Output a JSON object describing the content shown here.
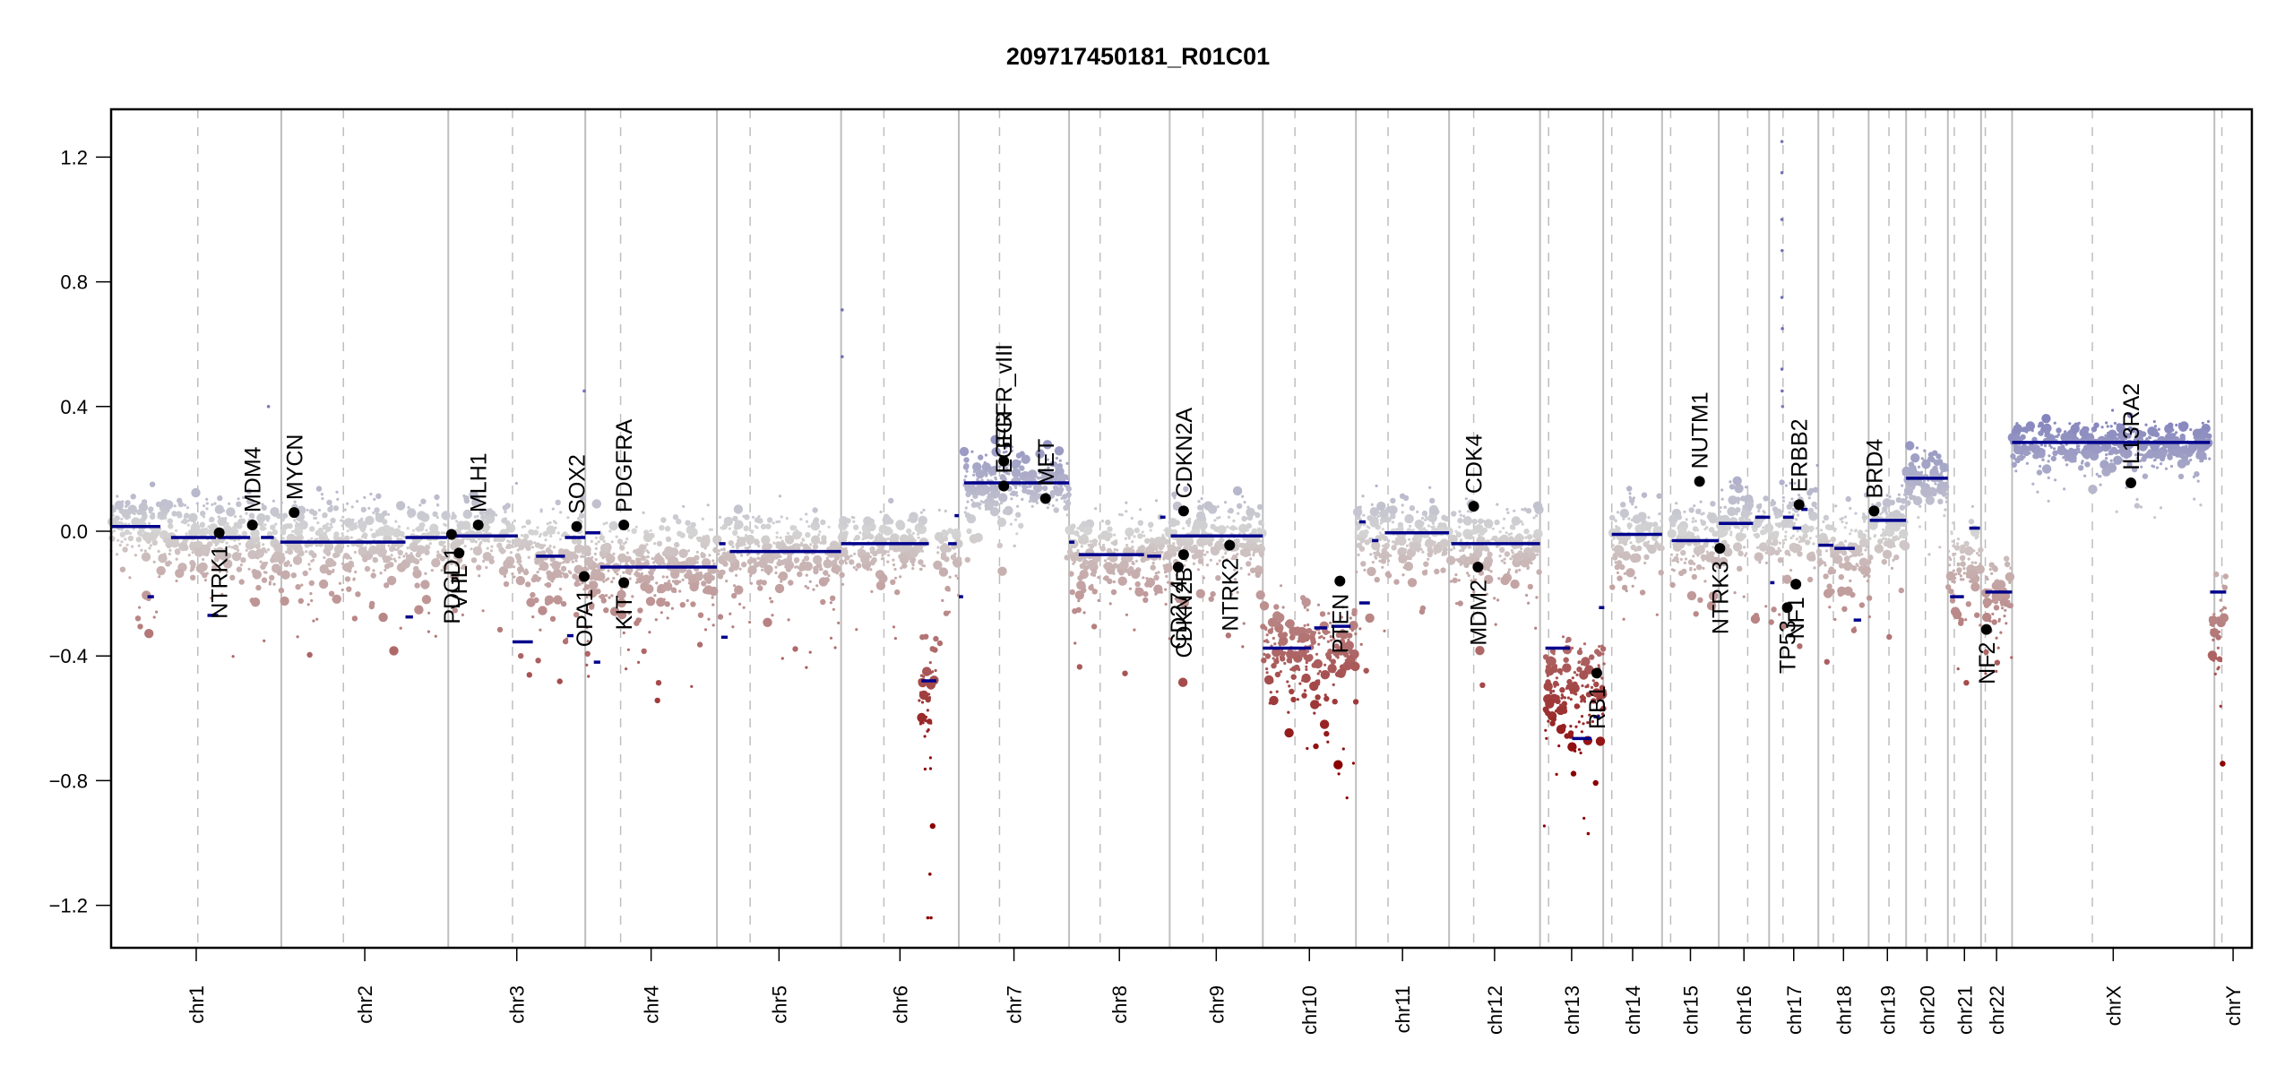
{
  "chart_data": {
    "type": "scatter",
    "title": "209717450181_R01C01",
    "xlabel": "",
    "ylabel": "",
    "ylim": [
      -1.35,
      1.35
    ],
    "yticks": [
      1.2,
      0.8,
      0.4,
      0.0,
      -0.4,
      -0.8,
      -1.2
    ],
    "ytick_labels": [
      "1.2",
      "0.8",
      "0.4",
      "0.0",
      "−0.4",
      "−0.8",
      "−1.2"
    ],
    "grid": false,
    "colors": {
      "gain": "#7070b8",
      "neutral": "#d4d4d4",
      "loss": "#8b0000",
      "segment": "#00008b",
      "gene_point": "#000000",
      "chrom_boundary": "#bebebe",
      "centromere": "#bebebe"
    },
    "chromosomes": [
      {
        "name": "chr1",
        "start": 0.0,
        "end": 0.0795,
        "centromere": 0.0405
      },
      {
        "name": "chr2",
        "start": 0.0795,
        "end": 0.1575,
        "centromere": 0.1085
      },
      {
        "name": "chr3",
        "start": 0.1575,
        "end": 0.2215,
        "centromere": 0.1875
      },
      {
        "name": "chr4",
        "start": 0.2215,
        "end": 0.283,
        "centromere": 0.238
      },
      {
        "name": "chr5",
        "start": 0.283,
        "end": 0.341,
        "centromere": 0.2985
      },
      {
        "name": "chr6",
        "start": 0.341,
        "end": 0.396,
        "centromere": 0.361
      },
      {
        "name": "chr7",
        "start": 0.396,
        "end": 0.4475,
        "centromere": 0.415
      },
      {
        "name": "chr8",
        "start": 0.4475,
        "end": 0.4945,
        "centromere": 0.462
      },
      {
        "name": "chr9",
        "start": 0.4945,
        "end": 0.538,
        "centromere": 0.51
      },
      {
        "name": "chr10",
        "start": 0.538,
        "end": 0.5815,
        "centromere": 0.553
      },
      {
        "name": "chr11",
        "start": 0.5815,
        "end": 0.625,
        "centromere": 0.5965
      },
      {
        "name": "chr12",
        "start": 0.625,
        "end": 0.6675,
        "centromere": 0.6365
      },
      {
        "name": "chr13",
        "start": 0.6675,
        "end": 0.697,
        "centromere": 0.6715
      },
      {
        "name": "chr14",
        "start": 0.697,
        "end": 0.7245,
        "centromere": 0.701
      },
      {
        "name": "chr15",
        "start": 0.7245,
        "end": 0.751,
        "centromere": 0.7285
      },
      {
        "name": "chr16",
        "start": 0.751,
        "end": 0.7745,
        "centromere": 0.7645
      },
      {
        "name": "chr17",
        "start": 0.7745,
        "end": 0.7975,
        "centromere": 0.781
      },
      {
        "name": "chr18",
        "start": 0.7975,
        "end": 0.821,
        "centromere": 0.8045
      },
      {
        "name": "chr19",
        "start": 0.821,
        "end": 0.8385,
        "centromere": 0.8305
      },
      {
        "name": "chr20",
        "start": 0.8385,
        "end": 0.858,
        "centromere": 0.8475
      },
      {
        "name": "chr21",
        "start": 0.858,
        "end": 0.8735,
        "centromere": 0.861
      },
      {
        "name": "chr22",
        "start": 0.8735,
        "end": 0.888,
        "centromere": 0.8755
      },
      {
        "name": "chrX",
        "start": 0.888,
        "end": 0.9825,
        "centromere": 0.9255
      },
      {
        "name": "chrY",
        "start": 0.9825,
        "end": 1.0,
        "centromere": 0.986
      }
    ],
    "segments": [
      {
        "chr": "chr1",
        "x0": 0.0,
        "x1": 0.023,
        "y": 0.015
      },
      {
        "chr": "chr1",
        "x0": 0.028,
        "x1": 0.049,
        "y": -0.02
      },
      {
        "chr": "chr1",
        "x0": 0.05,
        "x1": 0.065,
        "y": -0.02
      },
      {
        "chr": "chr1",
        "x0": 0.017,
        "x1": 0.02,
        "y": -0.21
      },
      {
        "chr": "chr1",
        "x0": 0.045,
        "x1": 0.05,
        "y": -0.27
      },
      {
        "chr": "chr2",
        "x0": 0.07,
        "x1": 0.076,
        "y": -0.02
      },
      {
        "chr": "chr2",
        "x0": 0.079,
        "x1": 0.1375,
        "y": -0.035
      },
      {
        "chr": "chr2",
        "x0": 0.1375,
        "x1": 0.157,
        "y": -0.02
      },
      {
        "chr": "chr2",
        "x0": 0.1375,
        "x1": 0.141,
        "y": -0.275
      },
      {
        "chr": "chr3",
        "x0": 0.159,
        "x1": 0.19,
        "y": -0.015
      },
      {
        "chr": "chr3",
        "x0": 0.1875,
        "x1": 0.197,
        "y": -0.355
      },
      {
        "chr": "chr3",
        "x0": 0.1985,
        "x1": 0.212,
        "y": -0.08
      },
      {
        "chr": "chr3",
        "x0": 0.212,
        "x1": 0.2215,
        "y": -0.02
      },
      {
        "chr": "chr3",
        "x0": 0.213,
        "x1": 0.216,
        "y": -0.335
      },
      {
        "chr": "chr4",
        "x0": 0.2215,
        "x1": 0.2285,
        "y": -0.005
      },
      {
        "chr": "chr4",
        "x0": 0.2285,
        "x1": 0.283,
        "y": -0.115
      },
      {
        "chr": "chr4",
        "x0": 0.2255,
        "x1": 0.2285,
        "y": -0.42
      },
      {
        "chr": "chr5",
        "x0": 0.284,
        "x1": 0.287,
        "y": -0.04
      },
      {
        "chr": "chr5",
        "x0": 0.289,
        "x1": 0.341,
        "y": -0.065
      },
      {
        "chr": "chr5",
        "x0": 0.285,
        "x1": 0.288,
        "y": -0.34
      },
      {
        "chr": "chr6",
        "x0": 0.341,
        "x1": 0.382,
        "y": -0.04
      },
      {
        "chr": "chr6",
        "x0": 0.3785,
        "x1": 0.3855,
        "y": -0.48
      },
      {
        "chr": "chr6",
        "x0": 0.391,
        "x1": 0.395,
        "y": -0.04
      },
      {
        "chr": "chr6",
        "x0": 0.394,
        "x1": 0.396,
        "y": 0.05
      },
      {
        "chr": "chr7",
        "x0": 0.3985,
        "x1": 0.4475,
        "y": 0.155
      },
      {
        "chr": "chr7",
        "x0": 0.396,
        "x1": 0.398,
        "y": -0.21
      },
      {
        "chr": "chr8",
        "x0": 0.4475,
        "x1": 0.45,
        "y": -0.035
      },
      {
        "chr": "chr8",
        "x0": 0.452,
        "x1": 0.4825,
        "y": -0.075
      },
      {
        "chr": "chr8",
        "x0": 0.484,
        "x1": 0.4905,
        "y": -0.08
      },
      {
        "chr": "chr8",
        "x0": 0.49,
        "x1": 0.4925,
        "y": 0.045
      },
      {
        "chr": "chr9",
        "x0": 0.495,
        "x1": 0.538,
        "y": -0.015
      },
      {
        "chr": "chr10",
        "x0": 0.538,
        "x1": 0.5605,
        "y": -0.375
      },
      {
        "chr": "chr10",
        "x0": 0.562,
        "x1": 0.568,
        "y": -0.31
      },
      {
        "chr": "chr10",
        "x0": 0.57,
        "x1": 0.579,
        "y": -0.305
      },
      {
        "chr": "chr11",
        "x0": 0.583,
        "x1": 0.588,
        "y": -0.23
      },
      {
        "chr": "chr11",
        "x0": 0.583,
        "x1": 0.586,
        "y": 0.03
      },
      {
        "chr": "chr11",
        "x0": 0.589,
        "x1": 0.592,
        "y": -0.03
      },
      {
        "chr": "chr11",
        "x0": 0.595,
        "x1": 0.625,
        "y": -0.005
      },
      {
        "chr": "chr12",
        "x0": 0.626,
        "x1": 0.6675,
        "y": -0.04
      },
      {
        "chr": "chr13",
        "x0": 0.67,
        "x1": 0.6815,
        "y": -0.375
      },
      {
        "chr": "chr13",
        "x0": 0.6825,
        "x1": 0.6915,
        "y": -0.665
      },
      {
        "chr": "chr13",
        "x0": 0.6925,
        "x1": 0.6955,
        "y": -0.595
      },
      {
        "chr": "chr13",
        "x0": 0.695,
        "x1": 0.6975,
        "y": -0.245
      },
      {
        "chr": "chr14",
        "x0": 0.701,
        "x1": 0.7245,
        "y": -0.01
      },
      {
        "chr": "chr15",
        "x0": 0.729,
        "x1": 0.751,
        "y": -0.03
      },
      {
        "chr": "chr16",
        "x0": 0.751,
        "x1": 0.767,
        "y": 0.025
      },
      {
        "chr": "chr16",
        "x0": 0.768,
        "x1": 0.775,
        "y": 0.045
      },
      {
        "chr": "chr17",
        "x0": 0.781,
        "x1": 0.786,
        "y": 0.045
      },
      {
        "chr": "chr17",
        "x0": 0.7855,
        "x1": 0.7895,
        "y": 0.01
      },
      {
        "chr": "chr17",
        "x0": 0.7895,
        "x1": 0.7925,
        "y": 0.07
      },
      {
        "chr": "chr17",
        "x0": 0.775,
        "x1": 0.777,
        "y": -0.165
      },
      {
        "chr": "chr18",
        "x0": 0.7975,
        "x1": 0.8045,
        "y": -0.045
      },
      {
        "chr": "chr18",
        "x0": 0.805,
        "x1": 0.8145,
        "y": -0.055
      },
      {
        "chr": "chr18",
        "x0": 0.814,
        "x1": 0.8175,
        "y": -0.285
      },
      {
        "chr": "chr19",
        "x0": 0.8215,
        "x1": 0.8385,
        "y": 0.035
      },
      {
        "chr": "chr20",
        "x0": 0.8385,
        "x1": 0.858,
        "y": 0.17
      },
      {
        "chr": "chr21",
        "x0": 0.859,
        "x1": 0.8655,
        "y": -0.21
      },
      {
        "chr": "chr21",
        "x0": 0.868,
        "x1": 0.873,
        "y": 0.01
      },
      {
        "chr": "chr22",
        "x0": 0.8755,
        "x1": 0.888,
        "y": -0.195
      },
      {
        "chr": "chrX",
        "x0": 0.888,
        "x1": 0.9805,
        "y": 0.285
      },
      {
        "chr": "chrY",
        "x0": 0.9805,
        "x1": 0.988,
        "y": -0.195
      }
    ],
    "genes": [
      {
        "name": "NTRK1",
        "x": 0.0505,
        "y": -0.005,
        "label_side": "below"
      },
      {
        "name": "MDM4",
        "x": 0.066,
        "y": 0.02,
        "label_side": "above"
      },
      {
        "name": "MYCN",
        "x": 0.0855,
        "y": 0.06,
        "label_side": "above"
      },
      {
        "name": "PDGD1",
        "x": 0.159,
        "y": -0.01,
        "label_side": "below"
      },
      {
        "name": "VHL",
        "x": 0.1625,
        "y": -0.07,
        "label_side": "below"
      },
      {
        "name": "MLH1",
        "x": 0.1715,
        "y": 0.02,
        "label_side": "above"
      },
      {
        "name": "SOX2",
        "x": 0.2175,
        "y": 0.015,
        "label_side": "above"
      },
      {
        "name": "OPA1",
        "x": 0.221,
        "y": -0.145,
        "label_side": "below"
      },
      {
        "name": "PDGFRA",
        "x": 0.2395,
        "y": 0.02,
        "label_side": "above"
      },
      {
        "name": "KIT",
        "x": 0.2395,
        "y": -0.165,
        "label_side": "below"
      },
      {
        "name": "EGFR",
        "x": 0.417,
        "y": 0.145,
        "label_side": "above"
      },
      {
        "name": "EGFR_vIII",
        "x": 0.417,
        "y": 0.225,
        "label_side": "above"
      },
      {
        "name": "MET",
        "x": 0.4365,
        "y": 0.105,
        "label_side": "above"
      },
      {
        "name": "CD274",
        "x": 0.4985,
        "y": -0.115,
        "label_side": "below"
      },
      {
        "name": "CDKN2B",
        "x": 0.501,
        "y": -0.075,
        "label_side": "below"
      },
      {
        "name": "CDKN2A",
        "x": 0.501,
        "y": 0.065,
        "label_side": "above"
      },
      {
        "name": "NTRK2",
        "x": 0.5225,
        "y": -0.045,
        "label_side": "below"
      },
      {
        "name": "PTEN",
        "x": 0.574,
        "y": -0.16,
        "label_side": "below"
      },
      {
        "name": "CDK4",
        "x": 0.6365,
        "y": 0.08,
        "label_side": "above"
      },
      {
        "name": "MDM2",
        "x": 0.6385,
        "y": -0.115,
        "label_side": "below"
      },
      {
        "name": "RB1",
        "x": 0.694,
        "y": -0.455,
        "label_side": "below"
      },
      {
        "name": "NUTM1",
        "x": 0.742,
        "y": 0.16,
        "label_side": "above"
      },
      {
        "name": "NTRK3",
        "x": 0.7515,
        "y": -0.055,
        "label_side": "below"
      },
      {
        "name": "TP53",
        "x": 0.783,
        "y": -0.245,
        "label_side": "below"
      },
      {
        "name": "NF1",
        "x": 0.787,
        "y": -0.17,
        "label_side": "below"
      },
      {
        "name": "ERBB2",
        "x": 0.7885,
        "y": 0.085,
        "label_side": "above"
      },
      {
        "name": "BRD4",
        "x": 0.8235,
        "y": 0.065,
        "label_side": "above"
      },
      {
        "name": "NF2",
        "x": 0.876,
        "y": -0.315,
        "label_side": "below"
      },
      {
        "name": "IL13RA2",
        "x": 0.9435,
        "y": 0.155,
        "label_side": "above"
      }
    ],
    "probe_profiles": [
      {
        "chr": "chr1",
        "x0": 0.0,
        "x1": 0.024,
        "center": 0.015,
        "spread": 0.13
      },
      {
        "chr": "chr1",
        "x0": 0.024,
        "x1": 0.065,
        "center": -0.02,
        "spread": 0.16
      },
      {
        "chr": "chr2",
        "x0": 0.065,
        "x1": 0.1575,
        "center": -0.03,
        "spread": 0.17
      },
      {
        "chr": "chr3",
        "x0": 0.1575,
        "x1": 0.19,
        "center": -0.015,
        "spread": 0.15
      },
      {
        "chr": "chr3",
        "x0": 0.19,
        "x1": 0.2215,
        "center": -0.07,
        "spread": 0.18
      },
      {
        "chr": "chr4",
        "x0": 0.2215,
        "x1": 0.283,
        "center": -0.1,
        "spread": 0.18
      },
      {
        "chr": "chr5",
        "x0": 0.283,
        "x1": 0.341,
        "center": -0.06,
        "spread": 0.16
      },
      {
        "chr": "chr6",
        "x0": 0.341,
        "x1": 0.38,
        "center": -0.04,
        "spread": 0.15
      },
      {
        "chr": "chr6",
        "x0": 0.3775,
        "x1": 0.3855,
        "center": -0.5,
        "spread": 0.25
      },
      {
        "chr": "chr6",
        "x0": 0.386,
        "x1": 0.396,
        "center": -0.05,
        "spread": 0.15
      },
      {
        "chr": "chr7",
        "x0": 0.3985,
        "x1": 0.4475,
        "center": 0.16,
        "spread": 0.13
      },
      {
        "chr": "chr8",
        "x0": 0.4475,
        "x1": 0.4945,
        "center": -0.07,
        "spread": 0.17
      },
      {
        "chr": "chr9",
        "x0": 0.4945,
        "x1": 0.538,
        "center": -0.02,
        "spread": 0.17
      },
      {
        "chr": "chr10",
        "x0": 0.538,
        "x1": 0.5815,
        "center": -0.37,
        "spread": 0.2
      },
      {
        "chr": "chr11",
        "x0": 0.5815,
        "x1": 0.625,
        "center": -0.01,
        "spread": 0.15
      },
      {
        "chr": "chr12",
        "x0": 0.625,
        "x1": 0.6675,
        "center": -0.04,
        "spread": 0.15
      },
      {
        "chr": "chr13",
        "x0": 0.6695,
        "x1": 0.6975,
        "center": -0.5,
        "spread": 0.22
      },
      {
        "chr": "chr14",
        "x0": 0.701,
        "x1": 0.7245,
        "center": -0.01,
        "spread": 0.15
      },
      {
        "chr": "chr15",
        "x0": 0.7285,
        "x1": 0.751,
        "center": -0.03,
        "spread": 0.16
      },
      {
        "chr": "chr16",
        "x0": 0.751,
        "x1": 0.7745,
        "center": 0.03,
        "spread": 0.15
      },
      {
        "chr": "chr17",
        "x0": 0.7745,
        "x1": 0.7975,
        "center": 0.02,
        "spread": 0.17
      },
      {
        "chr": "chr18",
        "x0": 0.7975,
        "x1": 0.821,
        "center": -0.05,
        "spread": 0.17
      },
      {
        "chr": "chr19",
        "x0": 0.821,
        "x1": 0.8385,
        "center": 0.03,
        "spread": 0.15
      },
      {
        "chr": "chr20",
        "x0": 0.8385,
        "x1": 0.858,
        "center": 0.17,
        "spread": 0.1
      },
      {
        "chr": "chr21",
        "x0": 0.858,
        "x1": 0.8735,
        "center": -0.1,
        "spread": 0.18
      },
      {
        "chr": "chr22",
        "x0": 0.8755,
        "x1": 0.888,
        "center": -0.2,
        "spread": 0.14
      },
      {
        "chr": "chrX",
        "x0": 0.888,
        "x1": 0.9805,
        "center": 0.28,
        "spread": 0.1
      },
      {
        "chr": "chrY",
        "x0": 0.9805,
        "x1": 0.988,
        "center": -0.3,
        "spread": 0.25
      }
    ],
    "outliers": [
      {
        "chr": "chr17",
        "x": 0.7805,
        "y": 1.25
      },
      {
        "chr": "chr17",
        "x": 0.7805,
        "y": 1.15
      },
      {
        "chr": "chr17",
        "x": 0.7805,
        "y": 1.0
      },
      {
        "chr": "chr17",
        "x": 0.7806,
        "y": 0.9
      },
      {
        "chr": "chr17",
        "x": 0.7805,
        "y": 0.75
      },
      {
        "chr": "chr17",
        "x": 0.7807,
        "y": 0.65
      },
      {
        "chr": "chr17",
        "x": 0.7805,
        "y": 0.52
      },
      {
        "chr": "chr17",
        "x": 0.7806,
        "y": 0.45
      },
      {
        "chr": "chr17",
        "x": 0.7808,
        "y": 0.4
      },
      {
        "chr": "chr5",
        "x": 0.3415,
        "y": 0.71
      },
      {
        "chr": "chr6",
        "x": 0.3415,
        "y": 0.56
      },
      {
        "chr": "chr3",
        "x": 0.221,
        "y": 0.45
      },
      {
        "chr": "chr1",
        "x": 0.0735,
        "y": 0.4
      },
      {
        "chr": "chr6",
        "x": 0.383,
        "y": -1.24
      },
      {
        "chr": "chr6",
        "x": 0.3815,
        "y": -1.24
      },
      {
        "chr": "chr6",
        "x": 0.3825,
        "y": -1.1
      },
      {
        "chr": "chr13",
        "x": 0.69,
        "y": -0.97
      }
    ]
  }
}
